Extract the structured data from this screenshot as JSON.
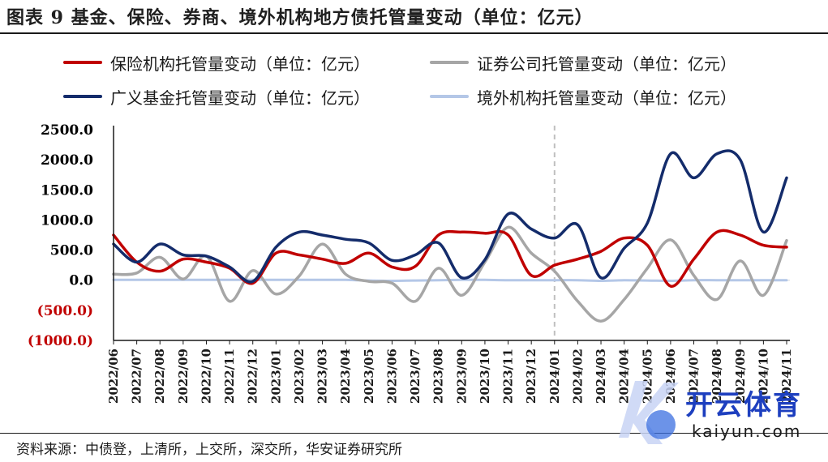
{
  "title": "图表 9 基金、保险、券商、境外机构地方债托管量变动（单位：亿元）",
  "source": "资料来源：中债登，上清所，上交所，深交所，华安证券研究所",
  "watermark": {
    "brand": "开云体育",
    "domain": "kaiyun.com"
  },
  "chart_data": {
    "type": "line",
    "x": [
      "2022/06",
      "2022/07",
      "2022/08",
      "2022/09",
      "2022/10",
      "2022/11",
      "2022/12",
      "2023/01",
      "2023/02",
      "2023/03",
      "2023/04",
      "2023/05",
      "2023/06",
      "2023/07",
      "2023/08",
      "2023/09",
      "2023/10",
      "2023/11",
      "2023/12",
      "2024/01",
      "2024/02",
      "2024/03",
      "2024/04",
      "2024/05",
      "2024/06",
      "2024/07",
      "2024/08",
      "2024/09",
      "2024/10",
      "2024/11"
    ],
    "ylim": [
      -1000,
      2500
    ],
    "yticks": [
      2500,
      2000,
      1500,
      1000,
      500,
      0,
      -500,
      -1000
    ],
    "ytick_labels": [
      "2500.0",
      "2000.0",
      "1500.0",
      "1000.0",
      "500.0",
      "0.0",
      "(500.0)",
      "(1000.0)"
    ],
    "ytick_colors": [
      "#000000",
      "#000000",
      "#000000",
      "#000000",
      "#000000",
      "#000000",
      "#c00000",
      "#c00000"
    ],
    "vertical_marker": "2024/01",
    "series": [
      {
        "name": "保险机构托管量变动（单位：亿元）",
        "color": "#c00000",
        "legend_col": 0,
        "legend_row": 0,
        "values": [
          750,
          300,
          150,
          350,
          300,
          200,
          -50,
          450,
          420,
          350,
          280,
          450,
          220,
          230,
          750,
          800,
          780,
          750,
          80,
          250,
          350,
          480,
          700,
          580,
          -100,
          350,
          800,
          750,
          580,
          550
        ]
      },
      {
        "name": "证券公司托管量变动（单位：亿元）",
        "color": "#a6a6a6",
        "legend_col": 1,
        "legend_row": 0,
        "values": [
          100,
          120,
          380,
          20,
          400,
          -350,
          160,
          -230,
          70,
          600,
          100,
          -20,
          -50,
          -350,
          200,
          -250,
          300,
          880,
          450,
          150,
          -350,
          -680,
          -320,
          200,
          670,
          80,
          -320,
          320,
          -250,
          660
        ]
      },
      {
        "name": "广义基金托管量变动（单位：亿元）",
        "color": "#142c6b",
        "legend_col": 0,
        "legend_row": 1,
        "values": [
          600,
          300,
          600,
          420,
          400,
          220,
          -20,
          550,
          800,
          750,
          680,
          620,
          330,
          420,
          620,
          40,
          340,
          1100,
          850,
          700,
          920,
          40,
          530,
          950,
          2100,
          1700,
          2100,
          2000,
          800,
          1700
        ]
      },
      {
        "name": "境外机构托管量变动（单位：亿元）",
        "color": "#b4c7e7",
        "legend_col": 1,
        "legend_row": 1,
        "values": [
          5,
          5,
          5,
          5,
          5,
          5,
          5,
          5,
          5,
          5,
          5,
          -5,
          -10,
          -5,
          0,
          5,
          5,
          0,
          0,
          0,
          0,
          -10,
          0,
          -5,
          -10,
          0,
          0,
          0,
          0,
          0
        ]
      }
    ]
  }
}
